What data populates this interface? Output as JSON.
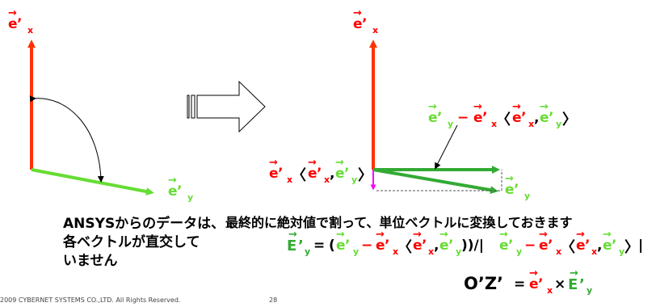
{
  "colors": {
    "red": "#ff0000",
    "orange": "#ff3300",
    "green": "#66dd33",
    "dark_green": "#33aa33",
    "magenta": "#ff00ff"
  },
  "labels": {
    "vec_e": "e",
    "prime": "’",
    "sub_x": "x",
    "sub_y": "y",
    "vec_E": "E",
    "minus": "−",
    "comma": ",",
    "bracket_open": "〈",
    "bracket_close": "〉",
    "paren_open": "(",
    "paren_close": "))/|",
    "bar_close": "|",
    "equals": "=",
    "cross": "×",
    "oz_label": "O’Z’"
  },
  "text": {
    "left_caption_line1": "ANSYSからのデータは、",
    "left_caption_line2": "各ベクトルが直交して",
    "left_caption_line3": "いません",
    "right_caption": "最終的に絶対値で割って、単位ベクトルに変換しておきます"
  },
  "footer": {
    "copyright": "2009 CYBERNET SYSTEMS CO.,LTD. All Rights Reserved.",
    "page_number": "28"
  }
}
